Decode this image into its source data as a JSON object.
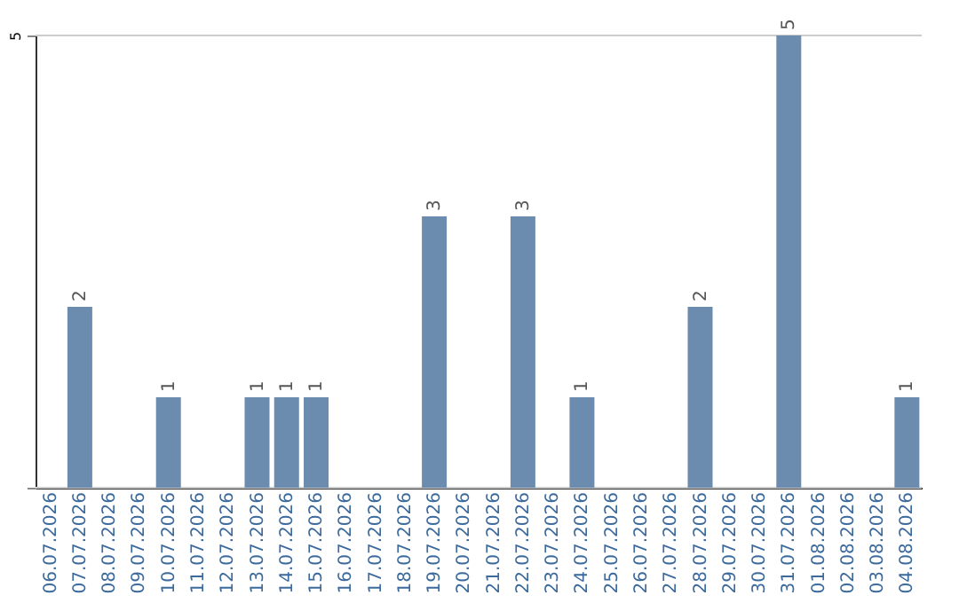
{
  "chart_data": {
    "type": "bar",
    "categories": [
      "06.07.2026",
      "07.07.2026",
      "08.07.2026",
      "09.07.2026",
      "10.07.2026",
      "11.07.2026",
      "12.07.2026",
      "13.07.2026",
      "14.07.2026",
      "15.07.2026",
      "16.07.2026",
      "17.07.2026",
      "18.07.2026",
      "19.07.2026",
      "20.07.2026",
      "21.07.2026",
      "22.07.2026",
      "23.07.2026",
      "24.07.2026",
      "25.07.2026",
      "26.07.2026",
      "27.07.2026",
      "28.07.2026",
      "29.07.2026",
      "30.07.2026",
      "31.07.2026",
      "01.08.2026",
      "02.08.2026",
      "03.08.2026",
      "04.08.2026"
    ],
    "values": [
      0,
      2,
      0,
      0,
      1,
      0,
      0,
      1,
      1,
      1,
      0,
      0,
      0,
      3,
      0,
      0,
      3,
      0,
      1,
      0,
      0,
      0,
      2,
      0,
      0,
      5,
      0,
      0,
      0,
      1
    ],
    "color": "#6b8cae",
    "ylim": [
      0,
      5
    ],
    "yticks": [
      {
        "value": 0,
        "label": null
      },
      5
    ],
    "value_labels": [
      null,
      "2",
      null,
      null,
      "1",
      null,
      null,
      "1",
      "1",
      "1",
      null,
      null,
      null,
      "3",
      null,
      null,
      "3",
      null,
      "1",
      null,
      null,
      null,
      "2",
      null,
      null,
      "5",
      null,
      null,
      null,
      "1"
    ],
    "grid": "y"
  }
}
